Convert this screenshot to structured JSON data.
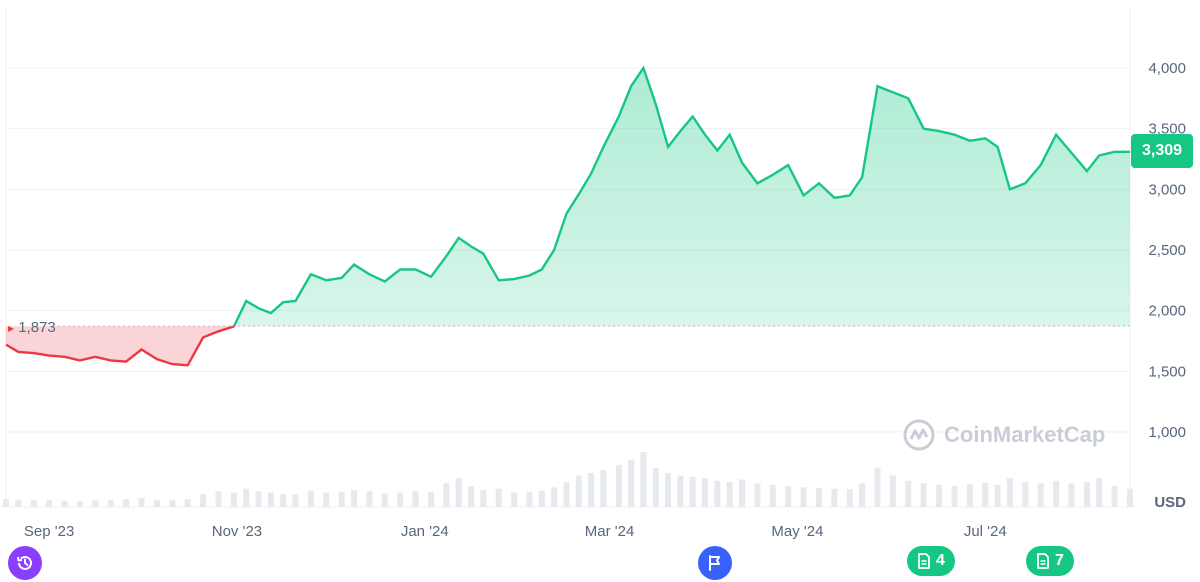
{
  "chart_data": {
    "type": "area",
    "unit": "USD",
    "baseline": 1873,
    "baseline_label": "1,873",
    "current_label": "3,309",
    "ylim": [
      0,
      4400
    ],
    "y_ticks": [
      1000,
      1500,
      2000,
      2500,
      3000,
      3500,
      4000
    ],
    "y_tick_labels": [
      "1,000",
      "1,500",
      "2,000",
      "2,500",
      "3,000",
      "3,500",
      "4,000"
    ],
    "x_ticks": [
      "2023-09-01",
      "2023-11-01",
      "2024-01-01",
      "2024-03-01",
      "2024-05-01",
      "2024-07-01"
    ],
    "x_tick_labels": [
      "Sep '23",
      "Nov '23",
      "Jan '24",
      "Mar '24",
      "May '24",
      "Jul '24"
    ],
    "xlim": [
      "2023-08-18",
      "2024-08-17"
    ],
    "colors": {
      "up": "#16c784",
      "down": "#ea3943",
      "grid": "#eff2f5",
      "volume": "#e6e9ee"
    },
    "series": [
      {
        "x": [
          "2023-08-18",
          "2023-08-22",
          "2023-08-27",
          "2023-09-01",
          "2023-09-06",
          "2023-09-11",
          "2023-09-16",
          "2023-09-21",
          "2023-09-26",
          "2023-10-01",
          "2023-10-06",
          "2023-10-11",
          "2023-10-16",
          "2023-10-21",
          "2023-10-26",
          "2023-10-31",
          "2023-11-04",
          "2023-11-08",
          "2023-11-12",
          "2023-11-16",
          "2023-11-20",
          "2023-11-25",
          "2023-11-30",
          "2023-12-05",
          "2023-12-09",
          "2023-12-14",
          "2023-12-19",
          "2023-12-24",
          "2023-12-29",
          "2024-01-03",
          "2024-01-08",
          "2024-01-12",
          "2024-01-16",
          "2024-01-20",
          "2024-01-25",
          "2024-01-30",
          "2024-02-04",
          "2024-02-08",
          "2024-02-12",
          "2024-02-16",
          "2024-02-20",
          "2024-02-24",
          "2024-02-28",
          "2024-03-04",
          "2024-03-08",
          "2024-03-12",
          "2024-03-16",
          "2024-03-20",
          "2024-03-24",
          "2024-03-28",
          "2024-04-01",
          "2024-04-05",
          "2024-04-09",
          "2024-04-13",
          "2024-04-18",
          "2024-04-23",
          "2024-04-28",
          "2024-05-03",
          "2024-05-08",
          "2024-05-13",
          "2024-05-18",
          "2024-05-22",
          "2024-05-27",
          "2024-06-01",
          "2024-06-06",
          "2024-06-11",
          "2024-06-16",
          "2024-06-21",
          "2024-06-26",
          "2024-07-01",
          "2024-07-05",
          "2024-07-09",
          "2024-07-14",
          "2024-07-19",
          "2024-07-24",
          "2024-07-29",
          "2024-08-03",
          "2024-08-07",
          "2024-08-12",
          "2024-08-17"
        ],
        "values": [
          1720,
          1660,
          1650,
          1630,
          1620,
          1590,
          1620,
          1590,
          1580,
          1680,
          1600,
          1560,
          1550,
          1780,
          1830,
          1870,
          2080,
          2020,
          1980,
          2070,
          2080,
          2300,
          2250,
          2270,
          2380,
          2300,
          2240,
          2340,
          2340,
          2280,
          2450,
          2600,
          2530,
          2470,
          2250,
          2260,
          2290,
          2340,
          2500,
          2800,
          2960,
          3130,
          3350,
          3600,
          3850,
          4000,
          3700,
          3350,
          3480,
          3600,
          3450,
          3320,
          3450,
          3220,
          3050,
          3120,
          3200,
          2950,
          3050,
          2930,
          2950,
          3100,
          3850,
          3800,
          3750,
          3500,
          3480,
          3450,
          3400,
          3420,
          3350,
          3000,
          3050,
          3200,
          3450,
          3300,
          3150,
          3280,
          3309,
          3309
        ]
      }
    ],
    "volume": [
      30,
      28,
      26,
      25,
      24,
      22,
      25,
      27,
      30,
      35,
      28,
      26,
      30,
      50,
      60,
      55,
      70,
      60,
      55,
      50,
      48,
      62,
      55,
      58,
      64,
      60,
      52,
      55,
      60,
      58,
      90,
      110,
      80,
      65,
      70,
      55,
      58,
      62,
      75,
      95,
      120,
      130,
      140,
      160,
      180,
      210,
      150,
      130,
      120,
      115,
      110,
      100,
      95,
      105,
      90,
      85,
      80,
      75,
      72,
      70,
      68,
      90,
      150,
      120,
      100,
      90,
      85,
      80,
      88,
      92,
      85,
      110,
      95,
      90,
      100,
      90,
      95,
      110,
      80,
      70
    ]
  },
  "price_tag": "3,309",
  "watermark": "CoinMarketCap",
  "markers": {
    "flag_count": "",
    "news_badge_1": "4",
    "news_badge_2": "7"
  }
}
